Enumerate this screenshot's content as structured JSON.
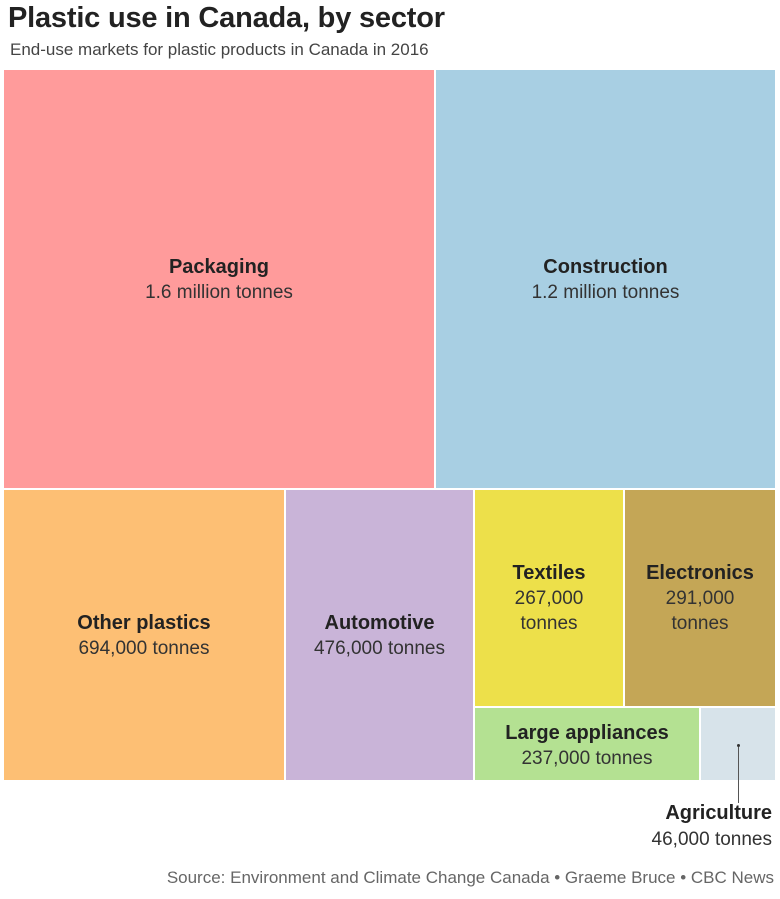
{
  "title": "Plastic use in Canada, by sector",
  "subtitle": "End-use markets for plastic products in Canada in 2016",
  "source": "Source: Environment and Climate Change Canada • Graeme Bruce • CBC News",
  "chart_data": {
    "type": "treemap",
    "unit": "tonnes",
    "items": [
      {
        "name": "Packaging",
        "value": 1600000,
        "label": "1.6 million tonnes",
        "color": "#FF9B9B"
      },
      {
        "name": "Construction",
        "value": 1200000,
        "label": "1.2 million tonnes",
        "color": "#A8CFE3"
      },
      {
        "name": "Other plastics",
        "value": 694000,
        "label": "694,000 tonnes",
        "color": "#FDBF74"
      },
      {
        "name": "Automotive",
        "value": 476000,
        "label": "476,000 tonnes",
        "color": "#C9B4D8"
      },
      {
        "name": "Textiles",
        "value": 267000,
        "label": "267,000 tonnes",
        "color": "#EDE04A"
      },
      {
        "name": "Electronics",
        "value": 291000,
        "label": "291,000 tonnes",
        "color": "#C4A656"
      },
      {
        "name": "Large appliances",
        "value": 237000,
        "label": "237,000 tonnes",
        "color": "#B4E192"
      },
      {
        "name": "Agriculture",
        "value": 46000,
        "label": "46,000 tonnes",
        "color": "#D7E3EA"
      }
    ]
  }
}
